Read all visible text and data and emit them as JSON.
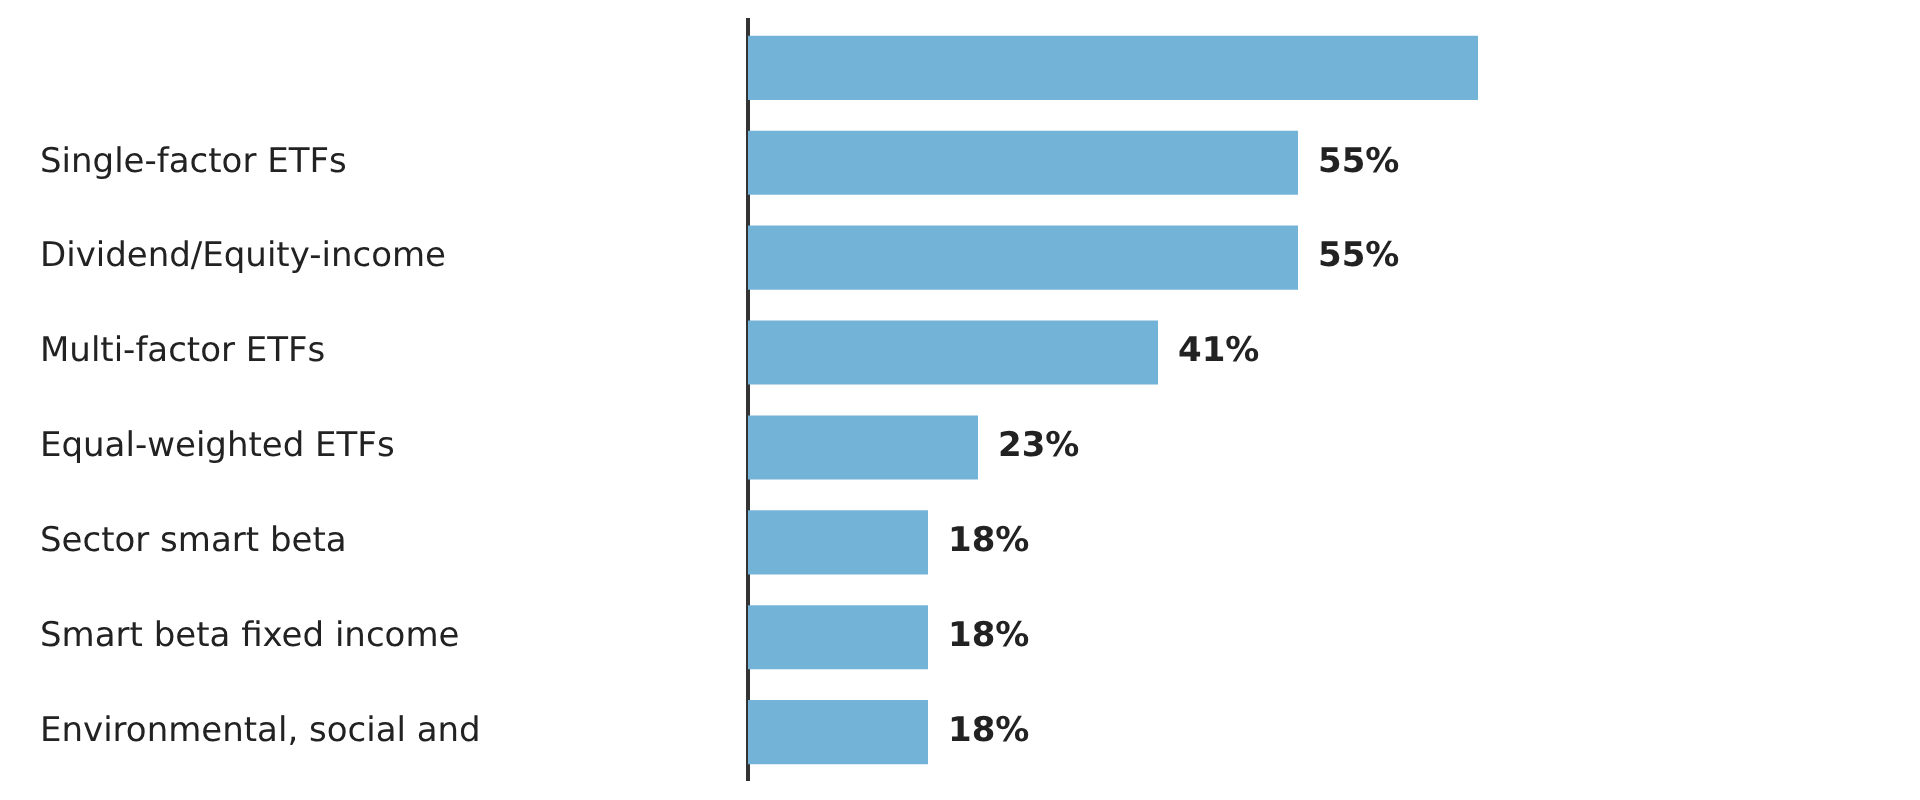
{
  "chart_data": {
    "type": "bar",
    "orientation": "horizontal",
    "categories": [
      null,
      "Single-factor ETFs",
      "Dividend/Equity-income",
      "Multi-factor ETFs",
      "Equal-weighted ETFs",
      "Sector smart beta",
      "Smart beta fixed income",
      "Environmental, social and"
    ],
    "values": [
      73,
      55,
      55,
      41,
      23,
      18,
      18,
      18
    ],
    "value_labels": [
      null,
      "55%",
      "55%",
      "41%",
      "23%",
      "18%",
      "18%",
      "18%"
    ],
    "color": "#74b3d8",
    "tick_labels": "y",
    "legend": false
  }
}
